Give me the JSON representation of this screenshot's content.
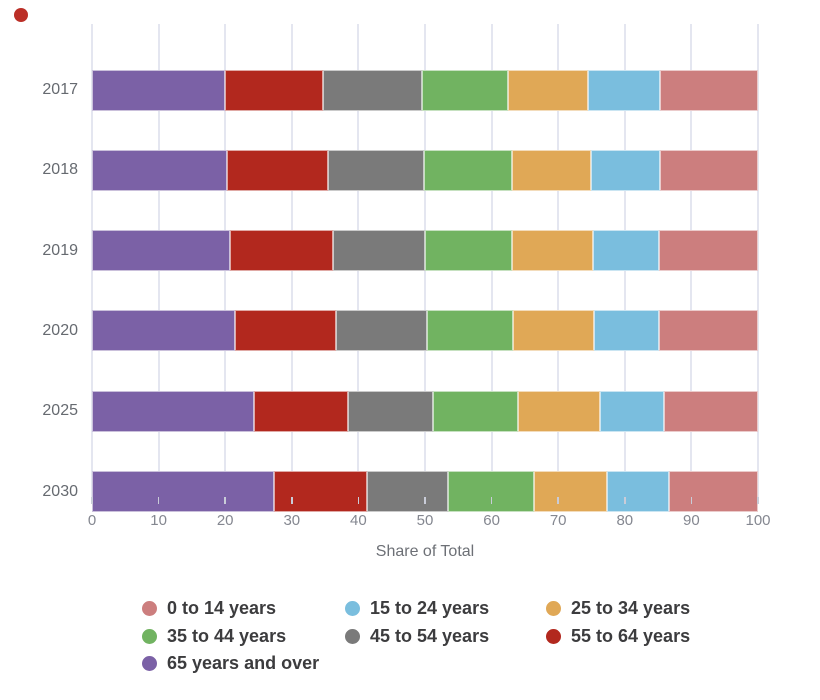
{
  "page": {
    "background": "#ffffff"
  },
  "status_dot": {
    "color": "#bb2f27"
  },
  "chart_data": {
    "type": "bar",
    "orientation": "horizontal",
    "stacked": true,
    "title": "",
    "xlabel": "Share of Total",
    "ylabel": "",
    "xlim": [
      0,
      100
    ],
    "x_ticks": [
      "0",
      "10",
      "20",
      "30",
      "40",
      "50",
      "60",
      "70",
      "80",
      "90",
      "100"
    ],
    "grid": "vertical-only",
    "legend_position": "bottom",
    "categories": [
      "2017",
      "2018",
      "2019",
      "2020",
      "2025",
      "2030"
    ],
    "stack_order_left_to_right": [
      "65 years and over",
      "55 to 64 years",
      "45 to 54 years",
      "35 to 44 years",
      "25 to 34 years",
      "15 to 24 years",
      "0 to 14 years"
    ],
    "series": [
      {
        "name": "65 years and over",
        "color": "#7b61a6",
        "values": [
          20.0,
          20.2,
          20.7,
          21.4,
          24.3,
          27.3
        ]
      },
      {
        "name": "55 to 64 years",
        "color": "#b2281e",
        "values": [
          14.7,
          15.3,
          15.5,
          15.3,
          14.2,
          14.0
        ]
      },
      {
        "name": "45 to 54 years",
        "color": "#7a7a7a",
        "values": [
          14.8,
          14.3,
          13.8,
          13.6,
          12.7,
          12.2
        ]
      },
      {
        "name": "35 to 44 years",
        "color": "#71b361",
        "values": [
          12.9,
          13.2,
          13.1,
          12.9,
          12.7,
          12.9
        ]
      },
      {
        "name": "25 to 34 years",
        "color": "#e0a856",
        "values": [
          12.1,
          11.9,
          12.1,
          12.2,
          12.4,
          11.0
        ]
      },
      {
        "name": "15 to 24 years",
        "color": "#7abede",
        "values": [
          10.8,
          10.4,
          10.0,
          9.8,
          9.6,
          9.3
        ]
      },
      {
        "name": "0 to 14 years",
        "color": "#cc7e7e",
        "values": [
          14.7,
          14.7,
          14.8,
          14.8,
          14.1,
          13.3
        ]
      }
    ],
    "legend_items": [
      {
        "label": "0 to 14 years",
        "color": "#cc7e7e"
      },
      {
        "label": "15 to 24 years",
        "color": "#7abede"
      },
      {
        "label": "25 to 34 years",
        "color": "#e0a856"
      },
      {
        "label": "35 to 44 years",
        "color": "#71b361"
      },
      {
        "label": "45 to 54 years",
        "color": "#7a7a7a"
      },
      {
        "label": "55 to 64 years",
        "color": "#b2281e"
      },
      {
        "label": "65 years and over",
        "color": "#7b61a6"
      }
    ]
  }
}
